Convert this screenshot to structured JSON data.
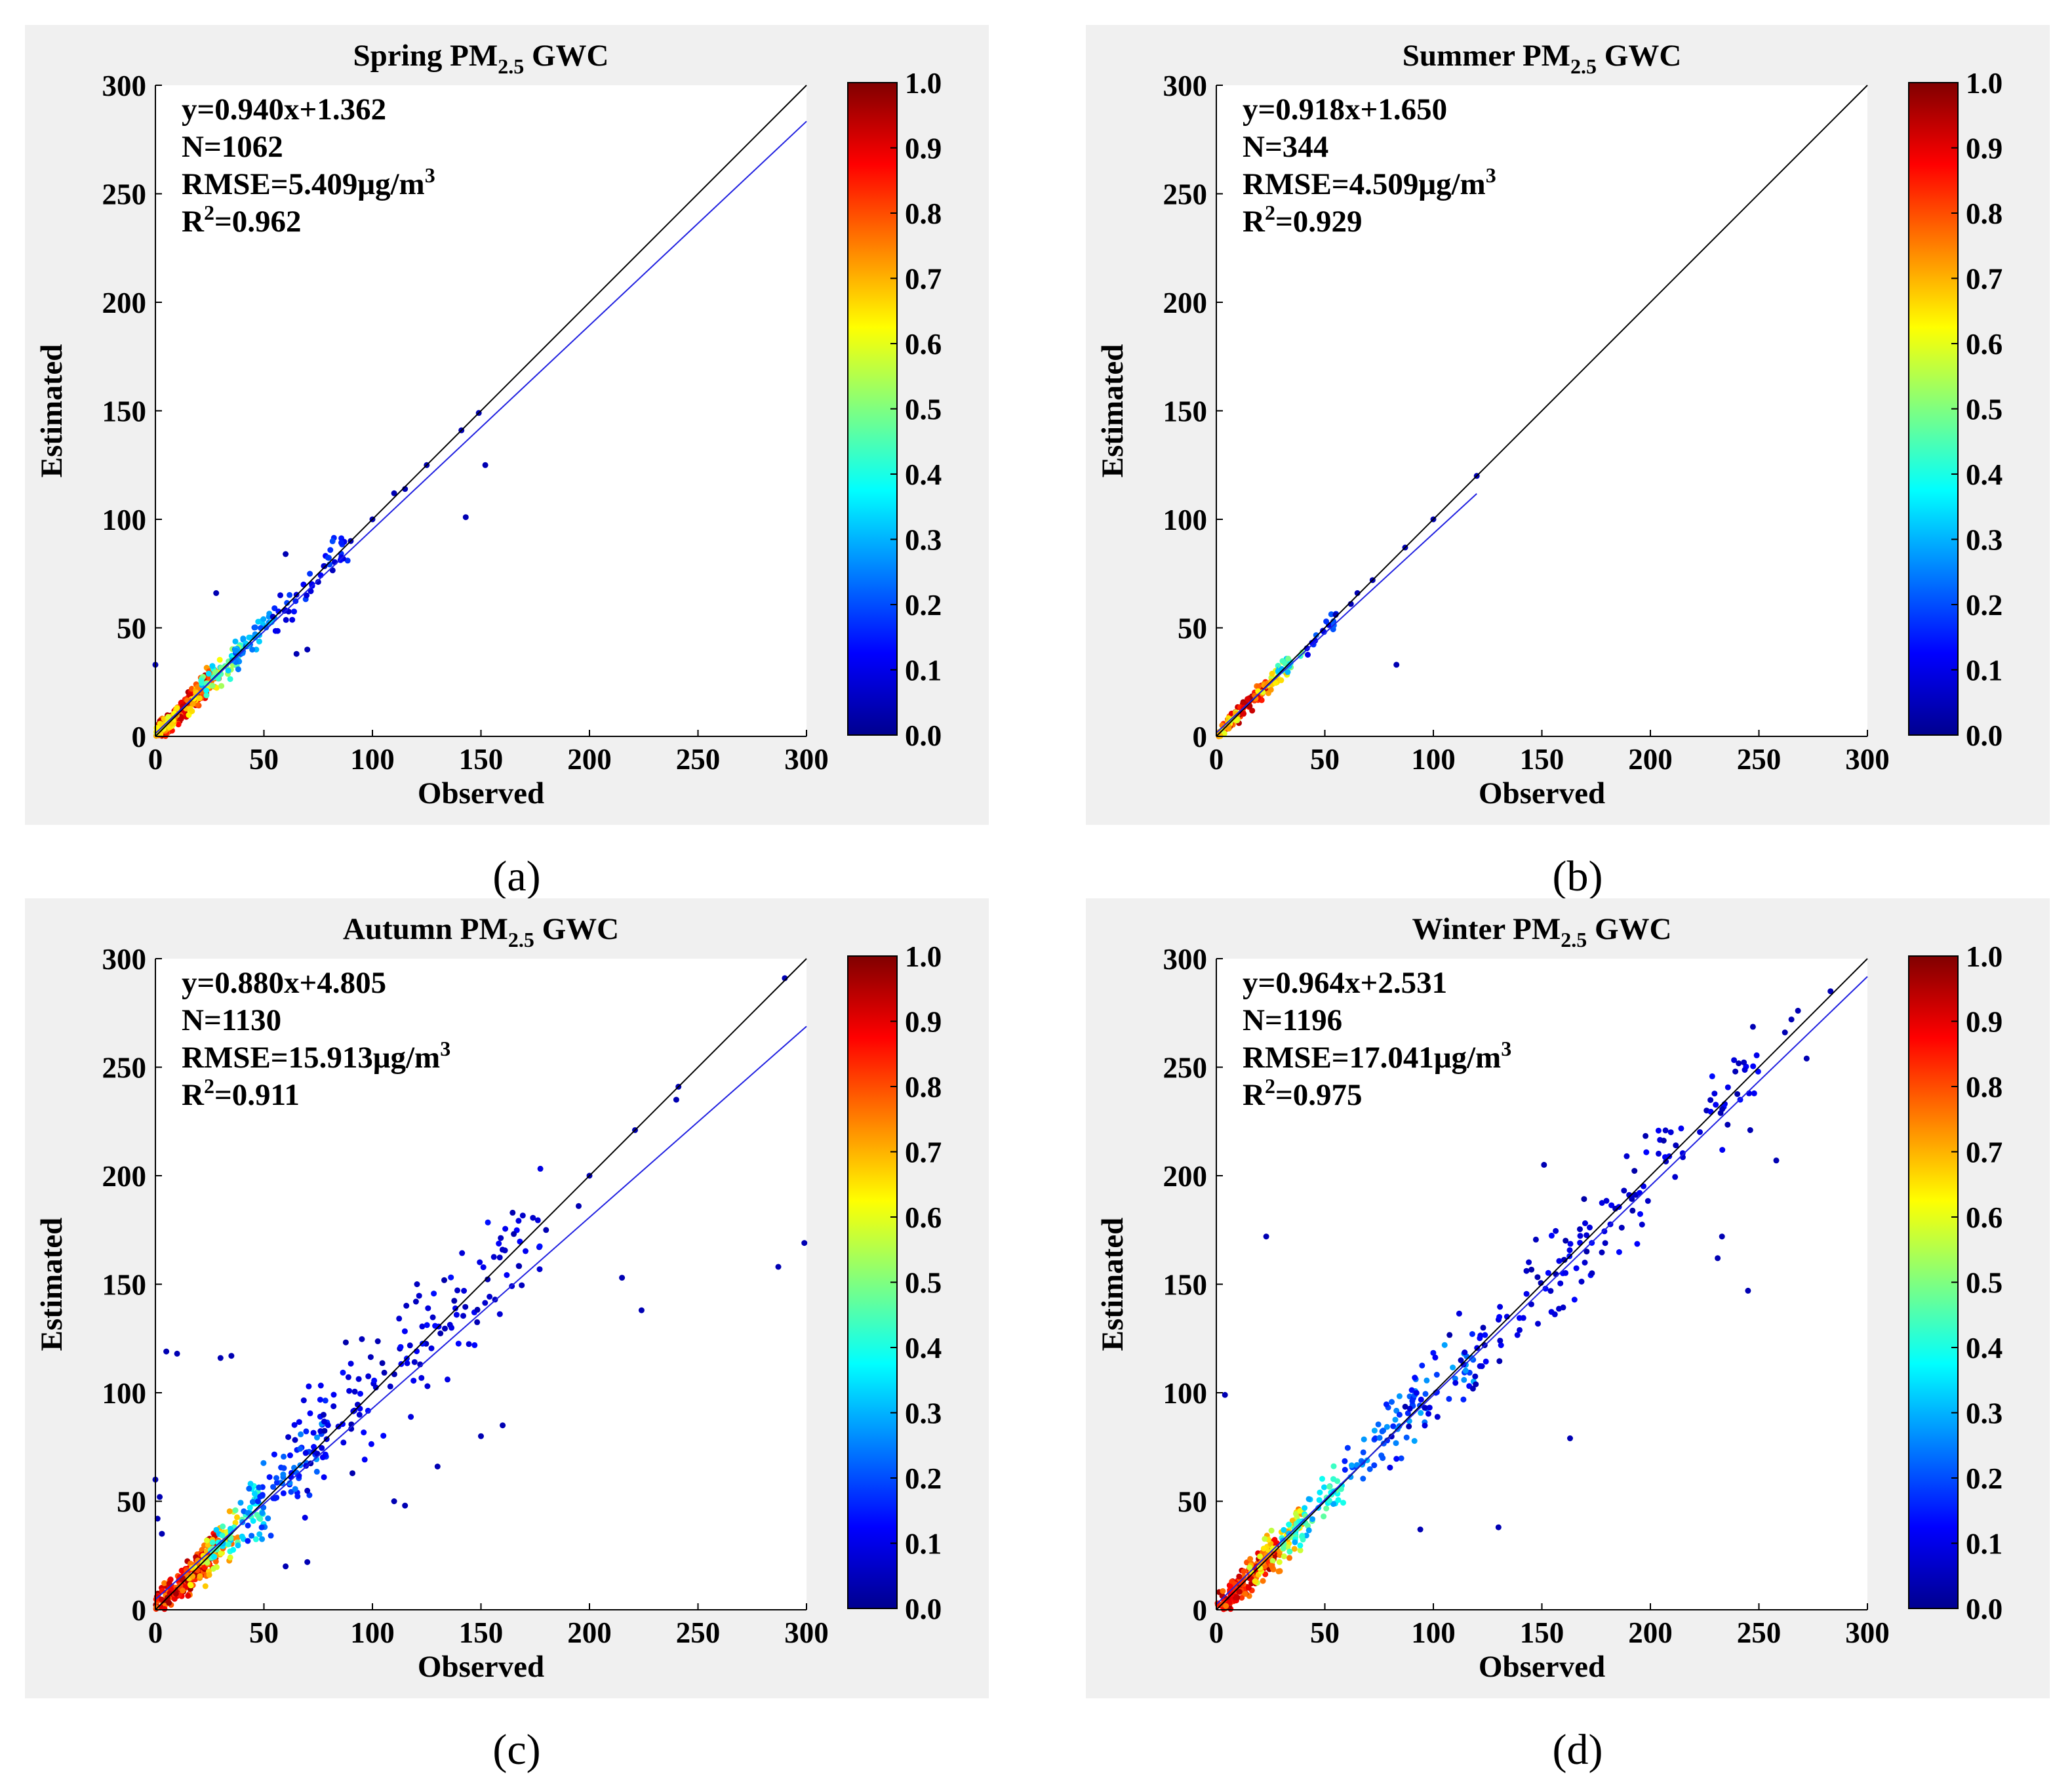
{
  "chart_data": [
    {
      "type": "scatter",
      "caption": "(a)",
      "title_prefix": "Spring PM",
      "title_sub": "2.5",
      "title_suffix": " GWC",
      "xlabel": "Observed",
      "ylabel": "Estimated",
      "xlim": [
        0,
        300
      ],
      "ylim": [
        0,
        300
      ],
      "ticks": [
        0,
        50,
        100,
        150,
        200,
        250,
        300
      ],
      "stats": {
        "equation": "y=0.940x+1.362",
        "n": "N=1062",
        "rmse_prefix": "RMSE=5.409μg/m",
        "rmse_sup": "3",
        "r2_prefix": "R",
        "r2_sup": "2",
        "r2_suffix": "=0.962"
      },
      "fit_line": {
        "slope": 0.94,
        "intercept": 1.362,
        "x_range": [
          0,
          300
        ],
        "color": "#2020e0"
      },
      "one_to_one": {
        "x_range": [
          0,
          300
        ],
        "color": "#000000"
      },
      "colorbar": {
        "range": [
          0,
          1
        ],
        "ticks": [
          "0.0",
          "0.1",
          "0.2",
          "0.3",
          "0.4",
          "0.5",
          "0.6",
          "0.7",
          "0.8",
          "0.9",
          "1.0"
        ],
        "colormap": "jet"
      },
      "clusters": [
        {
          "n": 220,
          "x_min": 1,
          "x_max": 24,
          "noise": 4,
          "d_min": 0.75,
          "d_max": 0.97
        },
        {
          "n": 60,
          "x_min": 0,
          "x_max": 10,
          "noise": 3,
          "d_min": 0.55,
          "d_max": 0.75
        },
        {
          "n": 55,
          "x_min": 14,
          "x_max": 30,
          "noise": 5,
          "d_min": 0.6,
          "d_max": 0.82
        },
        {
          "n": 45,
          "x_min": 20,
          "x_max": 40,
          "noise": 6,
          "d_min": 0.3,
          "d_max": 0.55
        },
        {
          "n": 45,
          "x_min": 35,
          "x_max": 55,
          "noise": 6,
          "d_min": 0.18,
          "d_max": 0.35
        },
        {
          "n": 45,
          "x_min": 50,
          "x_max": 90,
          "noise": 7,
          "d_min": 0.06,
          "d_max": 0.2
        }
      ],
      "points": [
        [
          143,
          101
        ],
        [
          152,
          125
        ],
        [
          149,
          149
        ],
        [
          141,
          141
        ],
        [
          125,
          125
        ],
        [
          115,
          114
        ],
        [
          110,
          112
        ],
        [
          100,
          100
        ],
        [
          90,
          90
        ],
        [
          60,
          84
        ],
        [
          28,
          66
        ],
        [
          65,
          38
        ],
        [
          70,
          40
        ],
        [
          0,
          33
        ]
      ]
    },
    {
      "type": "scatter",
      "caption": "(b)",
      "title_prefix": "Summer PM",
      "title_sub": "2.5",
      "title_suffix": " GWC",
      "xlabel": "Observed",
      "ylabel": "Estimated",
      "xlim": [
        0,
        300
      ],
      "ylim": [
        0,
        300
      ],
      "ticks": [
        0,
        50,
        100,
        150,
        200,
        250,
        300
      ],
      "stats": {
        "equation": "y=0.918x+1.650",
        "n": "N=344",
        "rmse_prefix": "RMSE=4.509μg/m",
        "rmse_sup": "3",
        "r2_prefix": "R",
        "r2_sup": "2",
        "r2_suffix": "=0.929"
      },
      "fit_line": {
        "slope": 0.918,
        "intercept": 1.65,
        "x_range": [
          0,
          120
        ],
        "color": "#2020e0"
      },
      "one_to_one": {
        "x_range": [
          0,
          300
        ],
        "color": "#000000"
      },
      "colorbar": {
        "range": [
          0,
          1
        ],
        "ticks": [
          "0.0",
          "0.1",
          "0.2",
          "0.3",
          "0.4",
          "0.5",
          "0.6",
          "0.7",
          "0.8",
          "0.9",
          "1.0"
        ],
        "colormap": "jet"
      },
      "clusters": [
        {
          "n": 90,
          "x_min": 2,
          "x_max": 24,
          "noise": 3,
          "d_min": 0.75,
          "d_max": 0.97
        },
        {
          "n": 30,
          "x_min": 0,
          "x_max": 10,
          "noise": 2,
          "d_min": 0.55,
          "d_max": 0.75
        },
        {
          "n": 30,
          "x_min": 18,
          "x_max": 34,
          "noise": 4,
          "d_min": 0.55,
          "d_max": 0.75
        },
        {
          "n": 20,
          "x_min": 28,
          "x_max": 40,
          "noise": 4,
          "d_min": 0.3,
          "d_max": 0.5
        },
        {
          "n": 15,
          "x_min": 40,
          "x_max": 58,
          "noise": 5,
          "d_min": 0.08,
          "d_max": 0.25
        }
      ],
      "points": [
        [
          120,
          120
        ],
        [
          100,
          100
        ],
        [
          87,
          87
        ],
        [
          72,
          72
        ],
        [
          65,
          66
        ],
        [
          83,
          33
        ],
        [
          55,
          56
        ],
        [
          62,
          61
        ]
      ]
    },
    {
      "type": "scatter",
      "caption": "(c)",
      "title_prefix": "Autumn PM",
      "title_sub": "2.5",
      "title_suffix": " GWC",
      "xlabel": "Observed",
      "ylabel": "Estimated",
      "xlim": [
        0,
        300
      ],
      "ylim": [
        0,
        300
      ],
      "ticks": [
        0,
        50,
        100,
        150,
        200,
        250,
        300
      ],
      "stats": {
        "equation": "y=0.880x+4.805",
        "n": "N=1130",
        "rmse_prefix": "RMSE=15.913μg/m",
        "rmse_sup": "3",
        "r2_prefix": "R",
        "r2_sup": "2",
        "r2_suffix": "=0.911"
      },
      "fit_line": {
        "slope": 0.88,
        "intercept": 4.805,
        "x_range": [
          0,
          300
        ],
        "color": "#2020e0"
      },
      "one_to_one": {
        "x_range": [
          0,
          300
        ],
        "color": "#000000"
      },
      "colorbar": {
        "range": [
          0,
          1
        ],
        "ticks": [
          "0.0",
          "0.1",
          "0.2",
          "0.3",
          "0.4",
          "0.5",
          "0.6",
          "0.7",
          "0.8",
          "0.9",
          "1.0"
        ],
        "colormap": "jet"
      },
      "clusters": [
        {
          "n": 230,
          "x_min": 0,
          "x_max": 28,
          "noise": 6,
          "d_min": 0.75,
          "d_max": 0.97
        },
        {
          "n": 60,
          "x_min": 15,
          "x_max": 38,
          "noise": 8,
          "d_min": 0.55,
          "d_max": 0.78
        },
        {
          "n": 60,
          "x_min": 25,
          "x_max": 50,
          "noise": 10,
          "d_min": 0.28,
          "d_max": 0.48
        },
        {
          "n": 70,
          "x_min": 40,
          "x_max": 80,
          "noise": 12,
          "d_min": 0.12,
          "d_max": 0.28
        },
        {
          "n": 150,
          "x_min": 60,
          "x_max": 180,
          "noise": 22,
          "d_min": 0.04,
          "d_max": 0.14
        }
      ],
      "points": [
        [
          290,
          291
        ],
        [
          299,
          169
        ],
        [
          287,
          158
        ],
        [
          241,
          241
        ],
        [
          240,
          235
        ],
        [
          221,
          221
        ],
        [
          215,
          153
        ],
        [
          224,
          138
        ],
        [
          200,
          200
        ],
        [
          195,
          186
        ],
        [
          180,
          175
        ],
        [
          5,
          119
        ],
        [
          10,
          118
        ],
        [
          30,
          116
        ],
        [
          35,
          117
        ],
        [
          0,
          60
        ],
        [
          2,
          52
        ],
        [
          1,
          42
        ],
        [
          3,
          35
        ],
        [
          60,
          20
        ],
        [
          70,
          22
        ],
        [
          110,
          50
        ],
        [
          115,
          48
        ],
        [
          150,
          80
        ],
        [
          160,
          85
        ],
        [
          130,
          66
        ]
      ]
    },
    {
      "type": "scatter",
      "caption": "(d)",
      "title_prefix": "Winter PM",
      "title_sub": "2.5",
      "title_suffix": " GWC",
      "xlabel": "Observed",
      "ylabel": "Estimated",
      "xlim": [
        0,
        300
      ],
      "ylim": [
        0,
        300
      ],
      "ticks": [
        0,
        50,
        100,
        150,
        200,
        250,
        300
      ],
      "stats": {
        "equation": "y=0.964x+2.531",
        "n": "N=1196",
        "rmse_prefix": "RMSE=17.041μg/m",
        "rmse_sup": "3",
        "r2_prefix": "R",
        "r2_sup": "2",
        "r2_suffix": "=0.975"
      },
      "fit_line": {
        "slope": 0.964,
        "intercept": 2.531,
        "x_range": [
          0,
          300
        ],
        "color": "#2020e0"
      },
      "one_to_one": {
        "x_range": [
          0,
          300
        ],
        "color": "#000000"
      },
      "colorbar": {
        "range": [
          0,
          1
        ],
        "ticks": [
          "0.0",
          "0.1",
          "0.2",
          "0.3",
          "0.4",
          "0.5",
          "0.6",
          "0.7",
          "0.8",
          "0.9",
          "1.0"
        ],
        "colormap": "jet"
      },
      "clusters": [
        {
          "n": 200,
          "x_min": 0,
          "x_max": 28,
          "noise": 6,
          "d_min": 0.75,
          "d_max": 0.97
        },
        {
          "n": 70,
          "x_min": 15,
          "x_max": 40,
          "noise": 8,
          "d_min": 0.55,
          "d_max": 0.78
        },
        {
          "n": 70,
          "x_min": 30,
          "x_max": 60,
          "noise": 9,
          "d_min": 0.28,
          "d_max": 0.5
        },
        {
          "n": 80,
          "x_min": 55,
          "x_max": 120,
          "noise": 12,
          "d_min": 0.15,
          "d_max": 0.3
        },
        {
          "n": 160,
          "x_min": 80,
          "x_max": 250,
          "noise": 18,
          "d_min": 0.04,
          "d_max": 0.14
        }
      ],
      "points": [
        [
          283,
          285
        ],
        [
          268,
          276
        ],
        [
          265,
          272
        ],
        [
          262,
          266
        ],
        [
          272,
          254
        ],
        [
          258,
          207
        ],
        [
          246,
          221
        ],
        [
          245,
          147
        ],
        [
          233,
          172
        ],
        [
          231,
          162
        ],
        [
          151,
          205
        ],
        [
          23,
          172
        ],
        [
          4,
          99
        ],
        [
          163,
          79
        ],
        [
          130,
          38
        ],
        [
          94,
          37
        ]
      ]
    }
  ]
}
